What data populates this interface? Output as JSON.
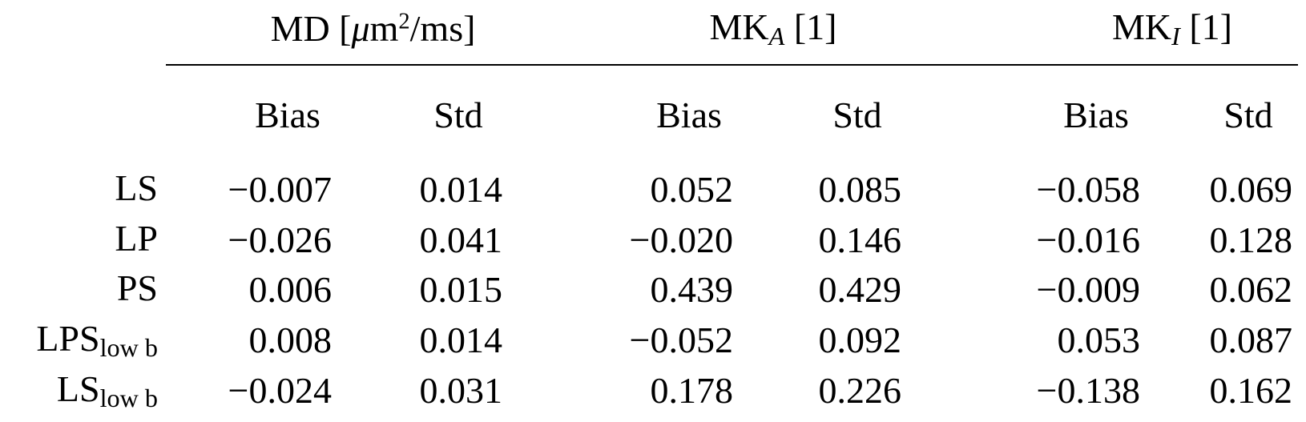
{
  "colors": {
    "background": "#ffffff",
    "text": "#000000",
    "rule": "#000000"
  },
  "table": {
    "group_headers": {
      "md": {
        "prefix": "MD [",
        "mu": "μ",
        "m": "m",
        "sup": "2",
        "suffix": "/ms]"
      },
      "mka": {
        "prefix": "MK",
        "sub": "A",
        "suffix": " [1]"
      },
      "mki": {
        "prefix": "MK",
        "sub": "I",
        "suffix": " [1]"
      }
    },
    "subheaders": [
      "Bias",
      "Std",
      "Bias",
      "Std",
      "Bias",
      "Std"
    ],
    "rows": [
      {
        "label": {
          "main": "LS",
          "sub": ""
        },
        "values": [
          "−0.007",
          "0.014",
          "0.052",
          "0.085",
          "−0.058",
          "0.069"
        ]
      },
      {
        "label": {
          "main": "LP",
          "sub": ""
        },
        "values": [
          "−0.026",
          "0.041",
          "−0.020",
          "0.146",
          "−0.016",
          "0.128"
        ]
      },
      {
        "label": {
          "main": "PS",
          "sub": ""
        },
        "values": [
          "0.006",
          "0.015",
          "0.439",
          "0.429",
          "−0.009",
          "0.062"
        ]
      },
      {
        "label": {
          "main": "LPS",
          "sub": "low b"
        },
        "values": [
          "0.008",
          "0.014",
          "−0.052",
          "0.092",
          "0.053",
          "0.087"
        ]
      },
      {
        "label": {
          "main": "LS",
          "sub": "low b"
        },
        "values": [
          "−0.024",
          "0.031",
          "0.178",
          "0.226",
          "−0.138",
          "0.162"
        ]
      }
    ]
  }
}
